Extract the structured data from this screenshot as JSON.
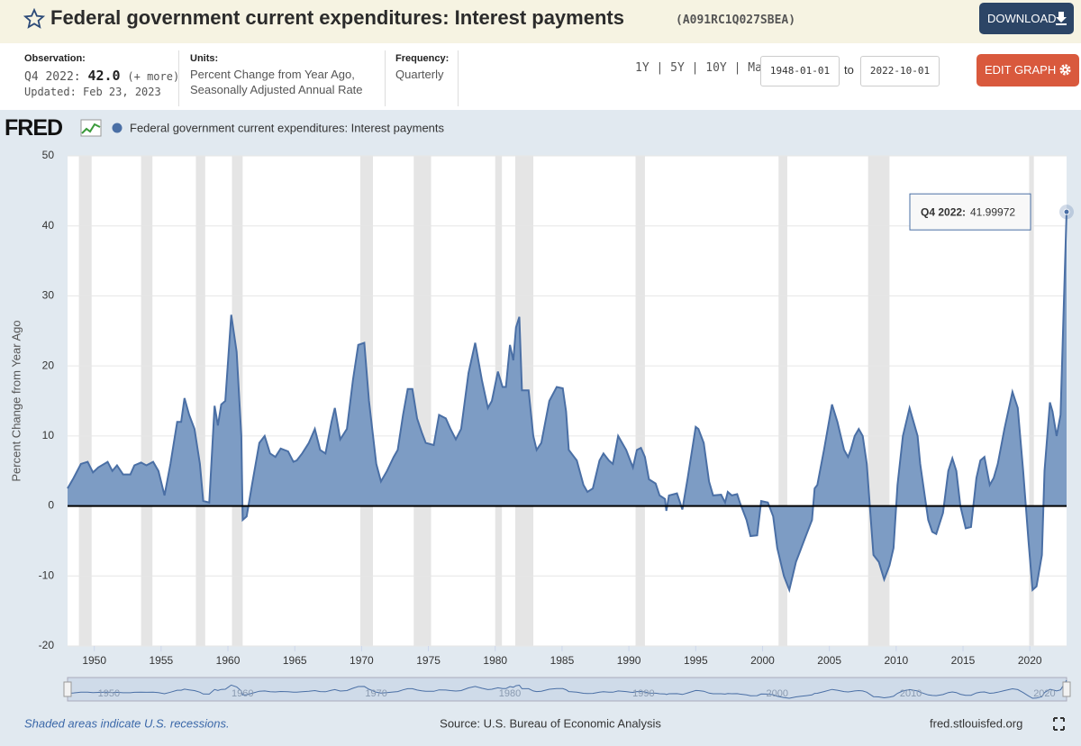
{
  "header": {
    "title": "Federal government current expenditures: Interest payments",
    "series_id": "(A091RC1Q027SBEA)",
    "download": "DOWNLOAD"
  },
  "info": {
    "observation_label": "Observation:",
    "observation_period": "Q4 2022:",
    "observation_value": "42.0",
    "more": "(+ more)",
    "updated": "Updated: Feb 23, 2023",
    "units_label": "Units:",
    "units_line1": "Percent Change from Year Ago,",
    "units_line2": "Seasonally Adjusted Annual Rate",
    "frequency_label": "Frequency:",
    "frequency": "Quarterly"
  },
  "controls": {
    "ranges": [
      "1Y",
      "5Y",
      "10Y",
      "Max"
    ],
    "start": "1948-01-01",
    "to": "to",
    "end": "2022-10-01",
    "edit": "EDIT GRAPH"
  },
  "logo": "FRED",
  "chart_data": {
    "type": "area",
    "ylabel": "Percent Change from Year Ago",
    "series": [
      {
        "name": "Federal government current expenditures: Interest payments",
        "color": "#4a6fa5",
        "fill": "#7d9cc4",
        "x": [
          1948,
          1948.45,
          1949,
          1949.5,
          1949.9,
          1950.3,
          1951,
          1951.35,
          1951.7,
          1952.15,
          1952.7,
          1953,
          1953.5,
          1953.9,
          1954.4,
          1954.8,
          1955.25,
          1955.7,
          1956.2,
          1956.5,
          1956.75,
          1957.1,
          1957.5,
          1957.9,
          1958.15,
          1958.6,
          1959,
          1959.25,
          1959.5,
          1959.8,
          1960.25,
          1960.65,
          1961,
          1961.1,
          1961.4,
          1961.8,
          1962.35,
          1962.75,
          1963.15,
          1963.55,
          1963.95,
          1964.5,
          1964.9,
          1965.15,
          1965.55,
          1966.05,
          1966.5,
          1966.9,
          1967.3,
          1967.75,
          1968,
          1968.4,
          1968.9,
          1969.35,
          1969.75,
          1970.2,
          1970.55,
          1971.1,
          1971.45,
          1971.9,
          1972.4,
          1972.7,
          1973.1,
          1973.45,
          1973.8,
          1974.15,
          1974.5,
          1974.8,
          1975.4,
          1975.8,
          1976.3,
          1976.65,
          1977.05,
          1977.45,
          1978,
          1978.5,
          1979,
          1979.45,
          1979.75,
          1980.2,
          1980.55,
          1980.8,
          1981.1,
          1981.35,
          1981.55,
          1981.8,
          1982,
          1982.5,
          1982.85,
          1983.1,
          1983.45,
          1984.05,
          1984.6,
          1985.05,
          1985.3,
          1985.5,
          1986.1,
          1986.6,
          1986.9,
          1987.3,
          1987.8,
          1988.1,
          1988.5,
          1988.8,
          1989.2,
          1989.8,
          1990.1,
          1990.3,
          1990.6,
          1990.9,
          1991.2,
          1991.5,
          1992,
          1992.3,
          1992.7,
          1992.8,
          1993,
          1993.6,
          1994,
          1994.4,
          1995,
          1995.2,
          1995.6,
          1996,
          1996.3,
          1996.9,
          1997.2,
          1997.4,
          1997.7,
          1998.1,
          1998.3,
          1998.8,
          1999.1,
          1999.6,
          1999.9,
          2000.4,
          2000.8,
          2001.1,
          2001.6,
          2002,
          2002.5,
          2002.9,
          2003.3,
          2003.7,
          2003.9,
          2004.1,
          2004.6,
          2005.2,
          2005.6,
          2006.1,
          2006.4,
          2006.6,
          2006.9,
          2007.2,
          2007.5,
          2007.8,
          2008.1,
          2008.3,
          2008.7,
          2009.1,
          2009.5,
          2009.8,
          2010.1,
          2010.5,
          2011,
          2011.6,
          2011.8,
          2012.4,
          2012.7,
          2013,
          2013.5,
          2013.9,
          2014.2,
          2014.5,
          2014.8,
          2015.2,
          2015.6,
          2016,
          2016.3,
          2016.6,
          2017,
          2017.3,
          2017.6,
          2018.1,
          2018.7,
          2019.1,
          2019.5,
          2019.9,
          2020.2,
          2020.5,
          2020.9,
          2021.1,
          2021.5,
          2021.7,
          2022,
          2022.3,
          2022.75
        ],
        "values": [
          2.5,
          4,
          6,
          6.3,
          4.8,
          5.5,
          6.3,
          5,
          5.8,
          4.5,
          4.5,
          5.8,
          6.2,
          5.8,
          6.3,
          5,
          1.5,
          6,
          12,
          12,
          15.4,
          13,
          11,
          6,
          0.7,
          0.5,
          14.3,
          11.5,
          14.5,
          15,
          27.3,
          22,
          10,
          -2,
          -1.5,
          3,
          9,
          10,
          7.5,
          7,
          8.2,
          7.8,
          6.3,
          6.5,
          7.5,
          9,
          11,
          8,
          7.5,
          12,
          14,
          9.5,
          11,
          18,
          23,
          23.3,
          15,
          6,
          3.5,
          5,
          7,
          8,
          13,
          16.7,
          16.7,
          12.5,
          10.5,
          9,
          8.7,
          13,
          12.5,
          11,
          9.5,
          11,
          19,
          23.3,
          18,
          14,
          15,
          19.2,
          17,
          17,
          23,
          20.8,
          25.5,
          27,
          16.5,
          16.5,
          10,
          8,
          9,
          15,
          17,
          16.8,
          13.5,
          8,
          6.5,
          3,
          2,
          2.5,
          6.5,
          7.5,
          6.5,
          6,
          10,
          8,
          6.5,
          5.5,
          8,
          8.3,
          7,
          3.8,
          3.2,
          1.5,
          1,
          -0.7,
          1.5,
          1.8,
          -0.5,
          4,
          11.3,
          11,
          9,
          3.5,
          1.5,
          1.6,
          0.5,
          2,
          1.5,
          1.7,
          0.5,
          -2,
          -4.3,
          -4.2,
          0.7,
          0.5,
          -1.5,
          -6,
          -10,
          -12,
          -8,
          -6,
          -4,
          -2,
          2.5,
          3,
          8,
          14.5,
          12,
          8,
          7,
          8,
          10,
          11,
          10,
          6,
          -2,
          -7,
          -8,
          -10.5,
          -8.5,
          -6,
          3,
          10,
          14,
          10,
          6,
          -2,
          -3.7,
          -4,
          -1,
          5,
          6.8,
          5,
          0,
          -3.2,
          -3,
          4,
          6.5,
          7,
          3,
          4,
          6,
          11,
          16.3,
          14,
          5,
          -5,
          -12,
          -11.5,
          -7,
          5,
          14.8,
          13.5,
          10,
          13,
          42
        ]
      }
    ],
    "recessions": [
      [
        1948.85,
        1949.8
      ],
      [
        1953.5,
        1954.35
      ],
      [
        1957.6,
        1958.3
      ],
      [
        1960.3,
        1961.1
      ],
      [
        1969.9,
        1970.85
      ],
      [
        1973.9,
        1975.2
      ],
      [
        1980,
        1980.5
      ],
      [
        1981.5,
        1982.85
      ],
      [
        1990.5,
        1991.2
      ],
      [
        2001.2,
        2001.85
      ],
      [
        2007.9,
        2009.5
      ],
      [
        2019.95,
        2020.3
      ]
    ],
    "xlim": [
      1948,
      2022.75
    ],
    "xticks": [
      1950,
      1955,
      1960,
      1965,
      1970,
      1975,
      1980,
      1985,
      1990,
      1995,
      2000,
      2005,
      2010,
      2015,
      2020
    ],
    "ylim": [
      -20,
      50
    ],
    "yticks": [
      -20,
      -10,
      0,
      10,
      20,
      30,
      40,
      50
    ],
    "grid": true,
    "tooltip": {
      "label": "Q4 2022:",
      "value": 41.99972
    }
  },
  "footer": {
    "note": "Shaded areas indicate U.S. recessions.",
    "source": "Source: U.S. Bureau of Economic Analysis",
    "site": "fred.stlouisfed.org"
  }
}
